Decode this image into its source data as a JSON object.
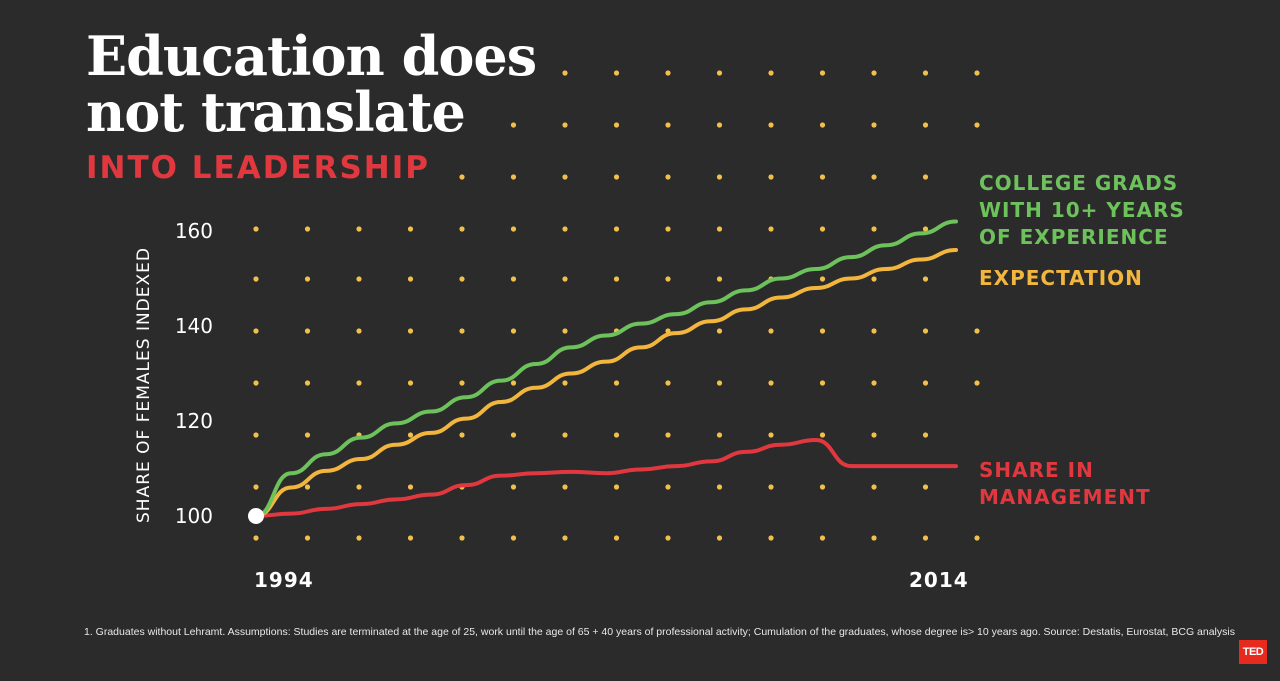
{
  "header": {
    "title_line1": "Education does",
    "title_line2": "not translate",
    "subtitle": "INTO LEADERSHIP"
  },
  "footnote": "1. Graduates without Lehramt. Assumptions: Studies are terminated at the age of 25, work until the age of 65 + 40 years of professional activity; Cumulation of the graduates, whose degree is> 10 years ago. Source: Destatis, Eurostat, BCG analysis",
  "logo": {
    "text": "TED"
  },
  "colors": {
    "background": "#2b2b2b",
    "grid_dots": "#f2c04a",
    "college": "#6dc25c",
    "expectation": "#f2b63e",
    "management": "#e0383e",
    "axis_text": "#ffffff"
  },
  "chart_data": {
    "type": "line",
    "title": "Education does not translate into leadership",
    "ylabel": "SHARE OF FEMALES INDEXED",
    "xlabel": "",
    "x": [
      1994,
      1995,
      1996,
      1997,
      1998,
      1999,
      2000,
      2001,
      2002,
      2003,
      2004,
      2005,
      2006,
      2007,
      2008,
      2009,
      2010,
      2011,
      2012,
      2013,
      2014
    ],
    "xlim": [
      1994,
      2014
    ],
    "ylim": [
      96,
      160
    ],
    "y_ticks": [
      100,
      120,
      140,
      160
    ],
    "x_tick_labels": [
      {
        "value": 1994,
        "label": "1994"
      },
      {
        "value": 2014,
        "label": "2014"
      }
    ],
    "grid": "dots",
    "series": [
      {
        "key": "college",
        "name": "COLLEGE GRADS WITH 10+ YEARS OF EXPERIENCE",
        "label_lines": [
          "COLLEGE GRADS",
          "WITH 10+ YEARS",
          "OF EXPERIENCE"
        ],
        "values": [
          100,
          109,
          113,
          116.5,
          119.5,
          122,
          125,
          128.5,
          132,
          135.5,
          138,
          140.5,
          142.5,
          145,
          147.5,
          150,
          152,
          154.5,
          157,
          159.5,
          162
        ]
      },
      {
        "key": "expectation",
        "name": "EXPECTATION",
        "label_lines": [
          "EXPECTATION"
        ],
        "values": [
          100,
          106,
          109.5,
          112,
          115,
          117.5,
          120.5,
          124,
          127,
          130,
          132.5,
          135.5,
          138.5,
          141,
          143.5,
          146,
          148,
          150,
          152,
          154,
          156
        ]
      },
      {
        "key": "management",
        "name": "SHARE IN MANAGEMENT",
        "label_lines": [
          "SHARE IN",
          "MANAGEMENT"
        ],
        "values": [
          100,
          100.5,
          101.5,
          102.5,
          103.5,
          104.5,
          106.5,
          108.5,
          109,
          109.3,
          109,
          109.8,
          110.5,
          111.5,
          113.5,
          115,
          116,
          110.5,
          110.5,
          110.5,
          110.5
        ]
      }
    ]
  }
}
